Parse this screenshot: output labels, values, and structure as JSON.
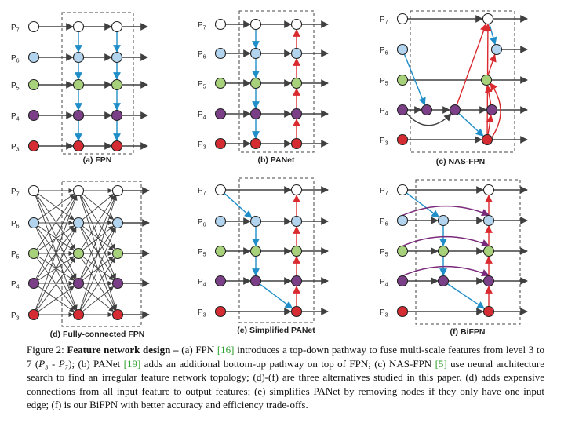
{
  "colors": {
    "p7": "#ffffff",
    "p6": "#b3d4ee",
    "p5": "#a7d17a",
    "p4": "#7a3f86",
    "p3": "#d52b32",
    "arrow_gray": "#404040",
    "arrow_blue": "#1f8ec8",
    "arrow_red": "#d92a2f",
    "arrow_purple": "#7a2a7a"
  },
  "levels": [
    "P7",
    "P6",
    "P5",
    "P4",
    "P3"
  ],
  "panels": [
    {
      "title": "(a) FPN"
    },
    {
      "title": "(b) PANet"
    },
    {
      "title": "(c) NAS-FPN"
    },
    {
      "title": "(d) Fully-connected FPN"
    },
    {
      "title": "(e) Simplified PANet"
    },
    {
      "title": "(f) BiFPN"
    }
  ],
  "caption": {
    "label": "Figure 2:",
    "title": "Feature network design –",
    "t1": "(a) FPN",
    "r1": "[16]",
    "t2": "introduces a top-down pathway to fuse multi-scale features from level 3 to 7 (",
    "t2_math": "P₃ - P₇",
    "t3": "); (b) PANet",
    "r2": "[19]",
    "t4": "adds an additional bottom-up pathway on top of FPN; (c) NAS-FPN",
    "r3": "[5]",
    "t5": "use neural architecture search to find an irregular feature network topology; (d)-(f) are three alternatives studied in this paper. (d) adds expensive connections from all input feature to output features; (e) simplifies PANet by removing nodes if they only have one input edge; (f) is our BiFPN with better accuracy and efficiency trade-offs."
  }
}
